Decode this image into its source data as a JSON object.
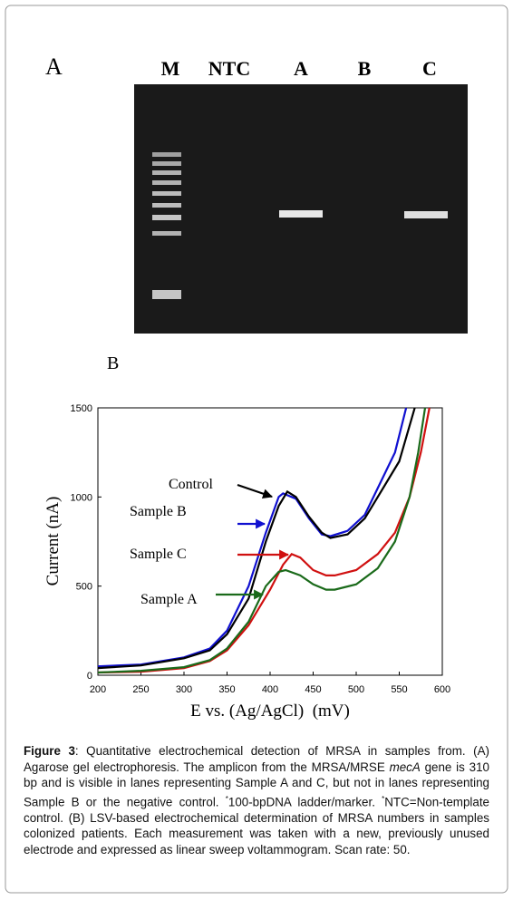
{
  "panel_a": {
    "label": "A",
    "lanes": [
      "M",
      "NTC",
      "A",
      "B",
      "C"
    ]
  },
  "panel_b": {
    "label": "B"
  },
  "chart_data": {
    "type": "line",
    "xlabel": "E vs. (Ag/AgCl)  (mV)",
    "ylabel": "Current (nA)",
    "xlim": [
      200,
      600
    ],
    "xticks": [
      200,
      250,
      300,
      350,
      400,
      450,
      500,
      550,
      600
    ],
    "ylim": [
      0,
      1500
    ],
    "yticks": [
      0,
      500,
      1000,
      1500
    ],
    "series": [
      {
        "name": "Sample B",
        "color": "#1010d0",
        "x": [
          200,
          250,
          300,
          330,
          350,
          375,
          395,
          410,
          415,
          430,
          445,
          460,
          470,
          490,
          510,
          525,
          545,
          558
        ],
        "values": [
          50,
          60,
          100,
          150,
          250,
          500,
          800,
          1000,
          1020,
          990,
          880,
          790,
          780,
          810,
          900,
          1050,
          1250,
          1500
        ]
      },
      {
        "name": "Control",
        "color": "#000000",
        "x": [
          200,
          250,
          300,
          330,
          350,
          375,
          395,
          410,
          420,
          430,
          445,
          460,
          470,
          490,
          510,
          525,
          550,
          568
        ],
        "values": [
          40,
          55,
          95,
          140,
          230,
          430,
          750,
          950,
          1030,
          1000,
          890,
          800,
          770,
          790,
          880,
          1000,
          1200,
          1500
        ]
      },
      {
        "name": "Sample C",
        "color": "#d01010",
        "x": [
          200,
          250,
          300,
          330,
          350,
          375,
          400,
          415,
          425,
          435,
          450,
          465,
          475,
          500,
          525,
          545,
          562,
          575,
          585
        ],
        "values": [
          15,
          20,
          40,
          80,
          140,
          280,
          480,
          620,
          680,
          660,
          590,
          560,
          560,
          590,
          680,
          800,
          1000,
          1250,
          1500
        ]
      },
      {
        "name": "Sample A",
        "color": "#1a6a1a",
        "x": [
          200,
          250,
          300,
          330,
          350,
          375,
          395,
          410,
          418,
          435,
          450,
          465,
          475,
          500,
          525,
          545,
          562,
          572,
          580
        ],
        "values": [
          15,
          25,
          45,
          85,
          150,
          300,
          500,
          580,
          590,
          560,
          510,
          480,
          480,
          510,
          600,
          750,
          1000,
          1250,
          1500
        ]
      }
    ],
    "annotations": [
      {
        "text": "Control"
      },
      {
        "text": "Sample B"
      },
      {
        "text": "Sample C"
      },
      {
        "text": "Sample A"
      }
    ]
  },
  "caption": {
    "parts": [
      "Figure 3",
      ": Quantitative electrochemical detection of MRSA in samples from. (A) Agarose gel electrophoresis. The amplicon from the MRSA/MRSE ",
      "mecA",
      " gene is 310 bp and is visible in lanes representing Sample A and C, but not in lanes representing Sample B or the negative control. ",
      "*",
      "100-bpDNA ladder/marker. ",
      "*",
      "NTC=Non-template control. (B) LSV-based electrochemical determination of MRSA numbers in samples colonized patients. Each measurement was taken with a new, previously unused electrode and expressed as linear sweep voltammogram. Scan rate: 50."
    ]
  }
}
